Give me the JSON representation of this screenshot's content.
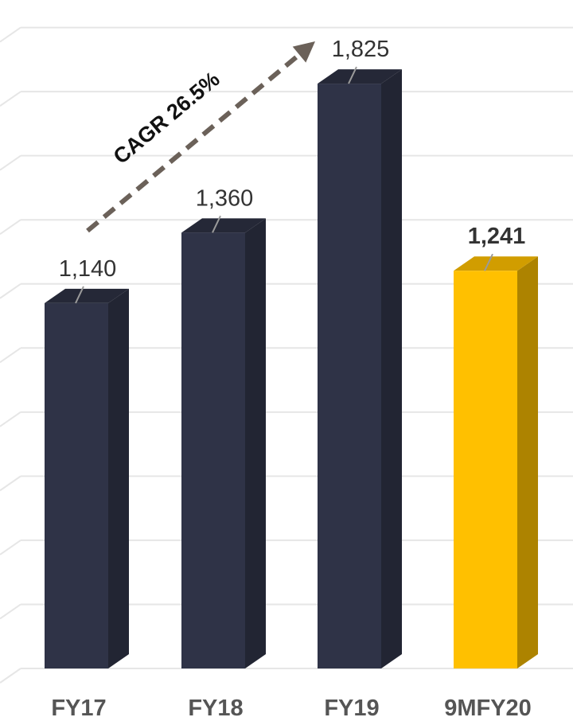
{
  "chart_data": {
    "type": "bar",
    "categories": [
      "FY17",
      "FY18",
      "FY19",
      "9MFY20"
    ],
    "values": [
      1140,
      1360,
      1825,
      1241
    ],
    "data_labels": [
      "1,140",
      "1,360",
      "1,825",
      "1,241"
    ],
    "ylim": [
      0,
      2000
    ],
    "grid": true,
    "legend": "none",
    "annotation": "CAGR 26.5%",
    "colors": {
      "bar": "#2f3347",
      "highlight": "#ffc000",
      "grid": "#e6e6e6",
      "arrow": "#6b6159"
    },
    "highlight_index": 3
  }
}
